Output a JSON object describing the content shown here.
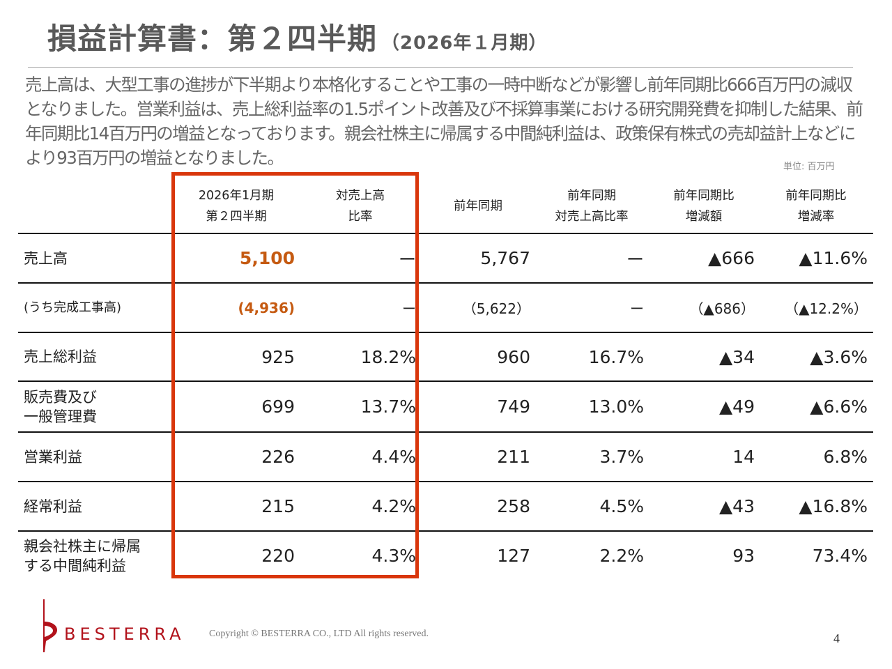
{
  "title": {
    "main": "損益計算書：第２四半期",
    "sub": "（2026年１月期）"
  },
  "summary": "売上高は、大型工事の進捗が下半期より本格化することや工事の一時中断などが影響し前年同期比666百万円の減収となりました。営業利益は、売上総利益率の1.5ポイント改善及び不採算事業における研究開発費を抑制した結果、前年同期比14百万円の増益となっております。親会社株主に帰属する中間純利益は、政策保有株式の売却益計上などにより93百万円の増益となりました。",
  "unit": "単位: 百万円",
  "table": {
    "headers": [
      {
        "line1": "2026年1月期",
        "line2": "第２四半期"
      },
      {
        "line1": "対売上高",
        "line2": "比率"
      },
      {
        "line1": "前年同期",
        "line2": ""
      },
      {
        "line1": "前年同期",
        "line2": "対売上高比率"
      },
      {
        "line1": "前年同期比",
        "line2": "増減額"
      },
      {
        "line1": "前年同期比",
        "line2": "増減率"
      }
    ],
    "rows": [
      {
        "label": "売上高",
        "cells": [
          "5,100",
          "ー",
          "5,767",
          "ー",
          "▲666",
          "▲11.6%"
        ]
      },
      {
        "label": "(うち完成工事高)",
        "cells": [
          "(4,936)",
          "ー",
          "（5,622）",
          "ー",
          "（▲686）",
          "（▲12.2%）"
        ]
      },
      {
        "label": "売上総利益",
        "cells": [
          "925",
          "18.2%",
          "960",
          "16.7%",
          "▲34",
          "▲3.6%"
        ]
      },
      {
        "label": "販売費及び\n一般管理費",
        "cells": [
          "699",
          "13.7%",
          "749",
          "13.0%",
          "▲49",
          "▲6.6%"
        ]
      },
      {
        "label": "営業利益",
        "cells": [
          "226",
          "4.4%",
          "211",
          "3.7%",
          "14",
          "6.8%"
        ]
      },
      {
        "label": "経常利益",
        "cells": [
          "215",
          "4.2%",
          "258",
          "4.5%",
          "▲43",
          "▲16.8%"
        ]
      },
      {
        "label": "親会社株主に帰属\nする中間純利益",
        "cells": [
          "220",
          "4.3%",
          "127",
          "2.2%",
          "93",
          "73.4%"
        ]
      }
    ]
  },
  "footer": {
    "logo_text": "BESTERRA",
    "copyright": "Copyright © BESTERRA CO., LTD All rights reserved.",
    "page_number": "4"
  },
  "colors": {
    "highlight_border": "#d9360b",
    "highlight_values": "#c55a11",
    "brand": "#b2121b",
    "title": "#595959"
  }
}
